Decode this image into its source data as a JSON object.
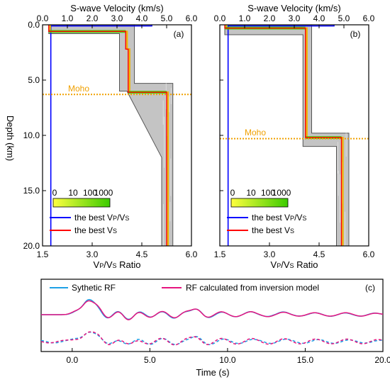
{
  "chart_data": [
    {
      "type": "line",
      "panel_label": "(a)",
      "top_axis": {
        "label": "S-wave Velocity (km/s)",
        "range": [
          0.0,
          6.0
        ],
        "ticks": [
          "0.0",
          "1.0",
          "2.0",
          "3.0",
          "4.0",
          "5.0",
          "6.0"
        ]
      },
      "bottom_axis": {
        "label": "Vₚ/Vₛ Ratio",
        "label_text": [
          "V",
          "P",
          "/V",
          "S",
          " Ratio"
        ],
        "range": [
          1.5,
          6.0
        ],
        "ticks": [
          "1.5",
          "3.0",
          "4.5",
          "6.0"
        ]
      },
      "y_axis": {
        "label": "Depth (km)",
        "range": [
          0.0,
          20.0
        ],
        "inverted": true,
        "ticks": [
          "0.0",
          "5.0",
          "10.0",
          "15.0",
          "20.0"
        ]
      },
      "moho": {
        "label": "Moho",
        "depth": 6.3
      },
      "colorbar": {
        "ticks": [
          "0",
          "10",
          "100",
          "1000"
        ],
        "colors": [
          "#ffff40",
          "#3ccc00"
        ]
      },
      "legend": [
        {
          "name_parts": [
            "the best V",
            "P",
            "/V",
            "S"
          ],
          "color": "#0000ff"
        },
        {
          "name_parts": [
            "the best V",
            "S"
          ],
          "color": "#ff0000"
        }
      ],
      "best_vs": {
        "depth": [
          0,
          0.6,
          0.6,
          2.2,
          2.2,
          6.1,
          6.1,
          20
        ],
        "vs": [
          0.25,
          0.25,
          3.35,
          3.35,
          3.45,
          3.45,
          5.0,
          5.0
        ]
      },
      "best_vpvs": {
        "depth": [
          0,
          0.1,
          0.1,
          20
        ],
        "ratio": [
          4.8,
          4.8,
          1.75,
          1.75
        ]
      },
      "ensemble_envelope": {
        "left": {
          "depth": [
            0.0,
            0.8,
            0.8,
            6.0,
            6.0,
            12.0,
            20.0
          ],
          "vs": [
            0.25,
            0.25,
            3.1,
            3.1,
            3.4,
            4.8,
            4.8
          ]
        },
        "right": {
          "depth": [
            0.0,
            0.3,
            0.3,
            5.3,
            5.3,
            20.0
          ],
          "vs": [
            3.7,
            3.7,
            3.7,
            3.7,
            5.25,
            5.25
          ]
        }
      }
    },
    {
      "type": "line",
      "panel_label": "(b)",
      "top_axis": {
        "label": "S-wave Velocity (km/s)",
        "range": [
          0.0,
          6.0
        ],
        "ticks": [
          "0.0",
          "1.0",
          "2.0",
          "3.0",
          "4.0",
          "5.0",
          "6.0"
        ]
      },
      "bottom_axis": {
        "label": "Vₚ/Vₛ Ratio",
        "label_text": [
          "V",
          "P",
          "/V",
          "S",
          " Ratio"
        ],
        "range": [
          1.5,
          6.0
        ],
        "ticks": [
          "1.5",
          "3.0",
          "4.5",
          "6.0"
        ]
      },
      "y_axis": {
        "range": [
          0.0,
          20.0
        ],
        "inverted": true
      },
      "moho": {
        "label": "Moho",
        "depth": 10.3
      },
      "colorbar": {
        "ticks": [
          "0",
          "10",
          "100",
          "1000"
        ],
        "colors": [
          "#ffff40",
          "#3ccc00"
        ]
      },
      "legend": [
        {
          "name_parts": [
            "the best V",
            "P",
            "/V",
            "S"
          ],
          "color": "#0000ff"
        },
        {
          "name_parts": [
            "the best V",
            "S"
          ],
          "color": "#ff0000"
        }
      ],
      "best_vs": {
        "depth": [
          0,
          0.3,
          0.3,
          10.2,
          10.2,
          20
        ],
        "vs": [
          0.2,
          0.2,
          3.45,
          3.45,
          4.9,
          4.9
        ]
      },
      "best_vpvs": {
        "depth": [
          0,
          0.1,
          0.1,
          20
        ],
        "ratio": [
          4.95,
          4.95,
          1.75,
          1.75
        ]
      },
      "ensemble_envelope": {
        "left": {
          "depth": [
            0.0,
            0.9,
            0.9,
            11.0,
            11.0,
            20.0
          ],
          "vs": [
            0.2,
            0.2,
            3.35,
            3.35,
            4.7,
            4.7
          ]
        },
        "right": {
          "depth": [
            0.0,
            0.4,
            0.4,
            9.8,
            9.8,
            20.0
          ],
          "vs": [
            3.7,
            3.7,
            3.7,
            3.7,
            5.2,
            5.2
          ]
        }
      }
    },
    {
      "type": "line",
      "panel_label": "(c)",
      "x_axis": {
        "label": "Time (s)",
        "range": [
          -2.0,
          20.0
        ],
        "ticks": [
          "0.0",
          "5.0",
          "10.0",
          "15.0",
          "20.0"
        ]
      },
      "legend": [
        {
          "name": "Sythetic RF",
          "color": "#1ea0e6"
        },
        {
          "name": "RF calculated from inversion model",
          "color": "#e6147f"
        }
      ],
      "series": [
        {
          "name": "Sythetic RF",
          "color": "#1ea0e6",
          "style": "solid",
          "offset": "upper"
        },
        {
          "name": "RF calculated from inversion model",
          "color": "#e6147f",
          "style": "solid",
          "offset": "upper"
        },
        {
          "name": "Sythetic RF",
          "color": "#1ea0e6",
          "style": "dashed",
          "offset": "lower"
        },
        {
          "name": "RF calculated from inversion model",
          "color": "#e6147f",
          "style": "dashed",
          "offset": "lower"
        }
      ],
      "trace_peaks": [
        {
          "t": 0.3,
          "a": 0.35
        },
        {
          "t": 1.0,
          "a": 1.2
        },
        {
          "t": 1.6,
          "a": 0.8
        },
        {
          "t": 2.3,
          "a": -0.4
        },
        {
          "t": 3.0,
          "a": 0.4
        },
        {
          "t": 3.6,
          "a": -0.6
        },
        {
          "t": 4.3,
          "a": 0.3
        },
        {
          "t": 5.0,
          "a": -0.3
        },
        {
          "t": 5.8,
          "a": 0.35
        },
        {
          "t": 6.6,
          "a": -0.35
        },
        {
          "t": 7.3,
          "a": 0.3
        },
        {
          "t": 8.0,
          "a": 0.55
        },
        {
          "t": 8.7,
          "a": -0.3
        },
        {
          "t": 9.6,
          "a": 0.3
        },
        {
          "t": 10.5,
          "a": -0.2
        },
        {
          "t": 11.5,
          "a": 0.3
        },
        {
          "t": 12.6,
          "a": -0.2
        },
        {
          "t": 13.6,
          "a": 0.25
        },
        {
          "t": 14.6,
          "a": -0.15
        },
        {
          "t": 15.6,
          "a": 0.2
        },
        {
          "t": 16.6,
          "a": -0.15
        },
        {
          "t": 17.6,
          "a": 0.2
        },
        {
          "t": 18.6,
          "a": -0.15
        },
        {
          "t": 19.5,
          "a": 0.15
        }
      ]
    }
  ]
}
